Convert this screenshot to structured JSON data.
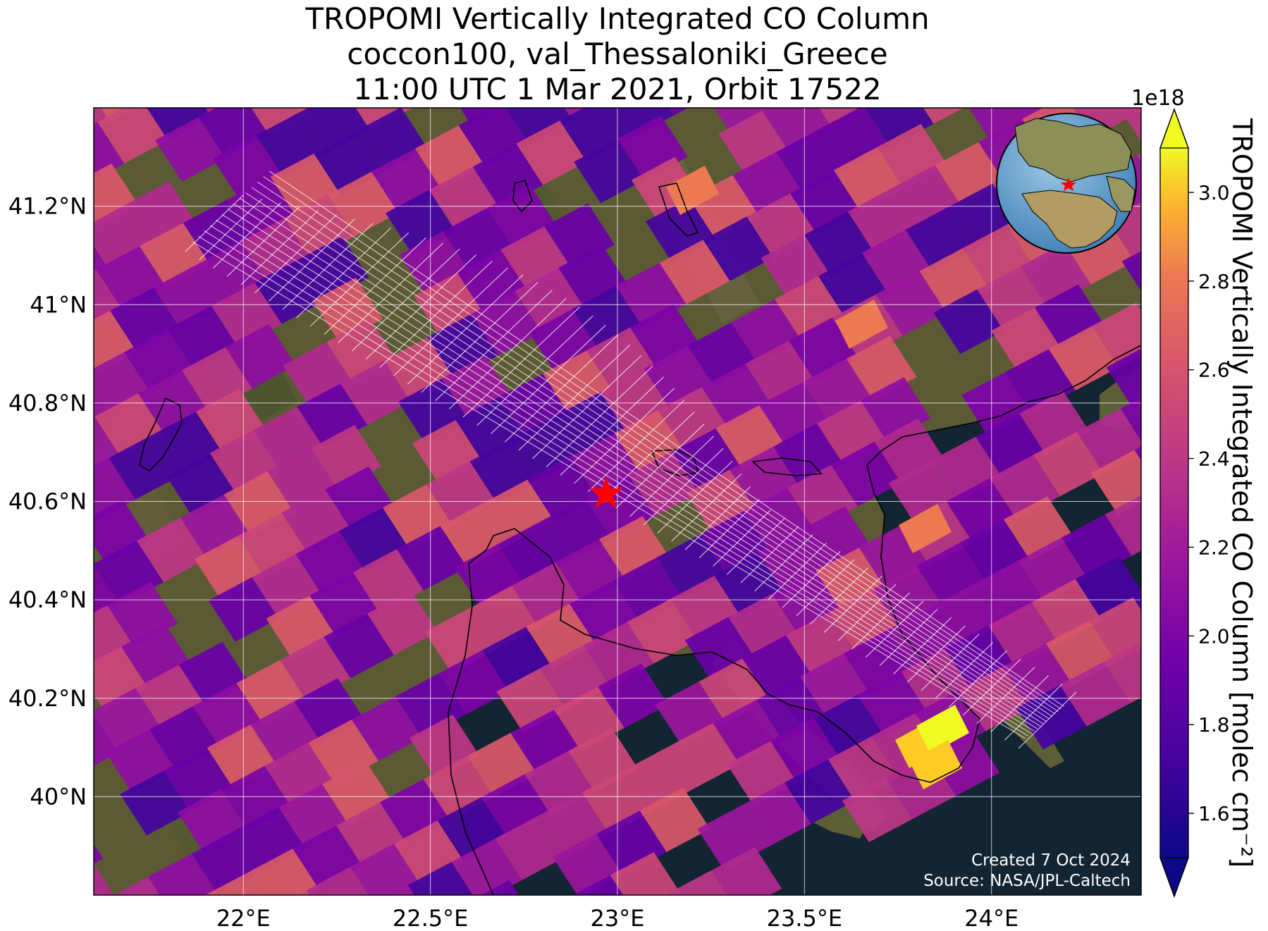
{
  "title": {
    "line1": "TROPOMI Vertically Integrated CO Column",
    "line2": "coccon100, val_Thessaloniki_Greece",
    "line3": "11:00 UTC 1 Mar 2021, Orbit 17522"
  },
  "map": {
    "lon_range": [
      21.6,
      24.4
    ],
    "lat_range": [
      39.8,
      41.4
    ],
    "x_ticks": [
      {
        "value": 22.0,
        "label": "22°E"
      },
      {
        "value": 22.5,
        "label": "22.5°E"
      },
      {
        "value": 23.0,
        "label": "23°E"
      },
      {
        "value": 23.5,
        "label": "23.5°E"
      },
      {
        "value": 24.0,
        "label": "24°E"
      }
    ],
    "y_ticks": [
      {
        "value": 41.2,
        "label": "41.2°N"
      },
      {
        "value": 41.0,
        "label": "41°N"
      },
      {
        "value": 40.8,
        "label": "40.8°N"
      },
      {
        "value": 40.6,
        "label": "40.6°N"
      },
      {
        "value": 40.4,
        "label": "40.4°N"
      },
      {
        "value": 40.2,
        "label": "40.2°N"
      },
      {
        "value": 40.0,
        "label": "40°N"
      }
    ],
    "site_marker": {
      "name": "Thessaloniki",
      "lon": 22.96,
      "lat": 40.63,
      "color": "#ff0000"
    },
    "grid": true,
    "inset_globe": "orthographic globe with site marked"
  },
  "colorbar": {
    "label": "TROPOMI Vertically Integrated CO Column [molec cm⁻²]",
    "exponent": "1e18",
    "min": 1.5,
    "max": 3.1,
    "ticks": [
      {
        "value": 1.6,
        "label": "1.6"
      },
      {
        "value": 1.8,
        "label": "1.8"
      },
      {
        "value": 2.0,
        "label": "2.0"
      },
      {
        "value": 2.2,
        "label": "2.2"
      },
      {
        "value": 2.4,
        "label": "2.4"
      },
      {
        "value": 2.6,
        "label": "2.6"
      },
      {
        "value": 2.8,
        "label": "2.8"
      },
      {
        "value": 3.0,
        "label": "3.0"
      }
    ],
    "colormap": "plasma",
    "extend": "both"
  },
  "credits": {
    "created": "Created 7 Oct 2024",
    "source": "Source: NASA/JPL-Caltech"
  }
}
